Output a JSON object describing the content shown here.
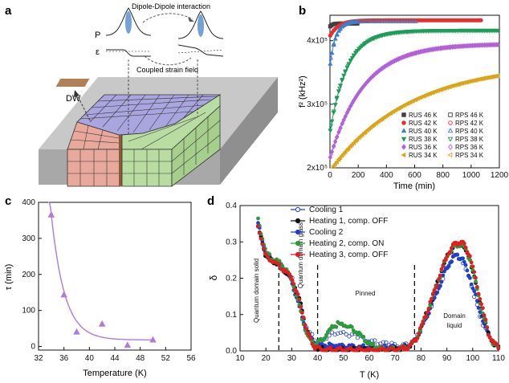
{
  "panels": {
    "a": {
      "label": "a",
      "dipole_label": "Dipole-Dipole interaction",
      "p_label": "P",
      "eps_label": "ε",
      "strain_label": "Coupled strain field",
      "dw_label": "DW",
      "colors": {
        "slab_top": "#c8c8c8",
        "slab_front": "#a8a8a8",
        "slab_side": "#8f8f8f",
        "purple": "#a9a6df",
        "pink": "#e8a89c",
        "green": "#b9dca3",
        "dw": "#b0805a"
      }
    },
    "b": {
      "label": "b"
    },
    "c": {
      "label": "c"
    },
    "d": {
      "label": "d"
    }
  },
  "chart_data": [
    {
      "id": "b",
      "type": "scatter",
      "xlabel": "Time (min)",
      "ylabel": "f² (kHz²)",
      "xlim": [
        0,
        1200
      ],
      "ylim": [
        200000,
        440000
      ],
      "xticks": [
        0,
        200,
        400,
        600,
        800,
        1000,
        1200
      ],
      "yticks": [
        {
          "value": 200000,
          "label": "2x10⁵"
        },
        {
          "value": 300000,
          "label": "3x10⁵"
        },
        {
          "value": 400000,
          "label": "4x10⁵"
        }
      ],
      "legend_position": "bottom-right",
      "series": [
        {
          "name": "RUS 46 K",
          "method": "RUS",
          "color": "#404040",
          "marker": "square",
          "filled": true,
          "a": 427000,
          "b": 5000,
          "tau": 16,
          "tmax": 200
        },
        {
          "name": "RPS 46 K",
          "method": "RPS",
          "color": "#404040",
          "marker": "square",
          "filled": false,
          "a": 427000,
          "b": 5000,
          "tau": 16,
          "tmax": 200
        },
        {
          "name": "RUS 42 K",
          "method": "RUS",
          "color": "#e53030",
          "marker": "circle",
          "filled": true,
          "a": 432000,
          "b": 25000,
          "tau": 60,
          "tmax": 1080
        },
        {
          "name": "RPS 42 K",
          "method": "RPS",
          "color": "#e53030",
          "marker": "circle",
          "filled": false,
          "a": 432000,
          "b": 25000,
          "tau": 60,
          "tmax": 200
        },
        {
          "name": "RUS 40 K",
          "method": "RUS",
          "color": "#3a7fd0",
          "marker": "triangle-up",
          "filled": true,
          "a": 430000,
          "b": 70000,
          "tau": 40,
          "tmax": 200
        },
        {
          "name": "RPS 40 K",
          "method": "RPS",
          "color": "#3a7fd0",
          "marker": "triangle-up",
          "filled": false,
          "a": 430000,
          "b": 70000,
          "tau": 40,
          "tmax": 610
        },
        {
          "name": "RUS 38 K",
          "method": "RUS",
          "color": "#1e9c5a",
          "marker": "triangle-down",
          "filled": true,
          "a": 416000,
          "b": 160000,
          "tau": 120,
          "tmax": 1200
        },
        {
          "name": "RPS 38 K",
          "method": "RPS",
          "color": "#1e9c5a",
          "marker": "triangle-down",
          "filled": false,
          "a": 416000,
          "b": 160000,
          "tau": 120,
          "tmax": 600
        },
        {
          "name": "RUS 36 K",
          "method": "RUS",
          "color": "#b262d8",
          "marker": "diamond",
          "filled": true,
          "a": 395000,
          "b": 180000,
          "tau": 240,
          "tmax": 1200
        },
        {
          "name": "RPS 36 K",
          "method": "RPS",
          "color": "#b262d8",
          "marker": "diamond",
          "filled": false,
          "a": 395000,
          "b": 180000,
          "tau": 240,
          "tmax": 900
        },
        {
          "name": "RUS 34 K",
          "method": "RUS",
          "color": "#d9a51a",
          "marker": "triangle-left",
          "filled": true,
          "a": 365000,
          "b": 170000,
          "tau": 560,
          "tmax": 1200
        },
        {
          "name": "RPS 34 K",
          "method": "RPS",
          "color": "#d9a51a",
          "marker": "triangle-left",
          "filled": false,
          "a": 365000,
          "b": 170000,
          "tau": 560,
          "tmax": 1200
        }
      ]
    },
    {
      "id": "c",
      "type": "scatter",
      "xlabel": "Temperature (K)",
      "ylabel": "τ (min)",
      "xlim": [
        32,
        56
      ],
      "ylim": [
        -10,
        400
      ],
      "xticks": [
        32,
        36,
        40,
        44,
        48,
        52,
        56
      ],
      "yticks": [
        0,
        100,
        200,
        300,
        400
      ],
      "color": "#b07ad8",
      "points": [
        {
          "x": 34,
          "y": 365
        },
        {
          "x": 36,
          "y": 143
        },
        {
          "x": 38,
          "y": 40
        },
        {
          "x": 42,
          "y": 62
        },
        {
          "x": 46,
          "y": 3
        },
        {
          "x": 50,
          "y": 18
        }
      ],
      "fit": {
        "base": 18,
        "amp": 350,
        "x0": 34,
        "scale": 2.1
      }
    },
    {
      "id": "d",
      "type": "line",
      "xlabel": "T (K)",
      "ylabel": "δ",
      "xlim": [
        10,
        110
      ],
      "ylim": [
        0,
        0.4
      ],
      "xticks": [
        10,
        20,
        30,
        40,
        50,
        60,
        70,
        80,
        90,
        100,
        110
      ],
      "yticks": [
        0.0,
        0.1,
        0.2,
        0.3,
        0.4
      ],
      "vlines": [
        25,
        40,
        77.5
      ],
      "annotations": [
        "Quantum domain solid",
        "Quantum domain glass",
        "Pinned",
        "Domain liquid"
      ],
      "legend_position": "top-left",
      "series": [
        {
          "name": "Cooling 1",
          "color": "#1f3fd0",
          "marker": "circle",
          "filled": false,
          "points": [
            [
              17,
              0.34
            ],
            [
              20,
              0.265
            ],
            [
              23,
              0.25
            ],
            [
              26,
              0.238
            ],
            [
              30,
              0.2
            ],
            [
              33,
              0.13
            ],
            [
              36,
              0.06
            ],
            [
              39,
              0.03
            ],
            [
              42,
              0.03
            ],
            [
              46,
              0.05
            ],
            [
              50,
              0.05
            ],
            [
              55,
              0.04
            ],
            [
              60,
              0.03
            ],
            [
              65,
              0.02
            ],
            [
              70,
              0.015
            ],
            [
              75,
              0.015
            ],
            [
              78,
              0.03
            ],
            [
              82,
              0.09
            ],
            [
              86,
              0.16
            ],
            [
              90,
              0.23
            ],
            [
              93,
              0.265
            ],
            [
              96,
              0.25
            ],
            [
              99,
              0.19
            ],
            [
              102,
              0.12
            ],
            [
              104,
              0.07
            ],
            [
              106,
              0.045
            ],
            [
              108,
              0.02
            ],
            [
              110,
              0.01
            ]
          ]
        },
        {
          "name": "Heating 1, comp. OFF",
          "color": "#111111",
          "marker": "circle",
          "filled": true,
          "points": [
            [
              17,
              0.34
            ],
            [
              20,
              0.26
            ],
            [
              23,
              0.245
            ],
            [
              26,
              0.23
            ],
            [
              30,
              0.2
            ],
            [
              33,
              0.14
            ],
            [
              36,
              0.05
            ],
            [
              39,
              0.01
            ],
            [
              42,
              0.005
            ],
            [
              46,
              0.003
            ],
            [
              50,
              0.003
            ],
            [
              55,
              0.003
            ],
            [
              60,
              0.003
            ],
            [
              65,
              0.003
            ],
            [
              70,
              0.005
            ],
            [
              75,
              0.01
            ],
            [
              78,
              0.03
            ],
            [
              82,
              0.1
            ],
            [
              86,
              0.18
            ],
            [
              90,
              0.26
            ],
            [
              93,
              0.29
            ],
            [
              96,
              0.295
            ],
            [
              99,
              0.25
            ],
            [
              102,
              0.16
            ],
            [
              104,
              0.1
            ],
            [
              106,
              0.05
            ],
            [
              108,
              0.02
            ],
            [
              110,
              0.01
            ]
          ]
        },
        {
          "name": "Cooling 2",
          "color": "#1f3fd0",
          "marker": "circle",
          "filled": true,
          "points": [
            [
              17,
              0.35
            ],
            [
              20,
              0.27
            ],
            [
              23,
              0.25
            ],
            [
              26,
              0.235
            ],
            [
              30,
              0.19
            ],
            [
              33,
              0.12
            ],
            [
              36,
              0.05
            ],
            [
              39,
              0.02
            ],
            [
              42,
              0.015
            ],
            [
              46,
              0.015
            ],
            [
              50,
              0.015
            ],
            [
              55,
              0.01
            ],
            [
              60,
              0.01
            ],
            [
              65,
              0.01
            ],
            [
              70,
              0.01
            ],
            [
              75,
              0.012
            ],
            [
              78,
              0.03
            ],
            [
              82,
              0.09
            ],
            [
              86,
              0.16
            ],
            [
              90,
              0.23
            ],
            [
              93,
              0.262
            ],
            [
              96,
              0.255
            ],
            [
              99,
              0.2
            ],
            [
              102,
              0.13
            ],
            [
              104,
              0.08
            ],
            [
              106,
              0.045
            ],
            [
              108,
              0.02
            ],
            [
              110,
              0.01
            ]
          ]
        },
        {
          "name": "Heating 2, comp. ON",
          "color": "#2e9a3a",
          "marker": "circle",
          "filled": true,
          "points": [
            [
              17,
              0.36
            ],
            [
              20,
              0.27
            ],
            [
              23,
              0.25
            ],
            [
              26,
              0.24
            ],
            [
              30,
              0.2
            ],
            [
              33,
              0.12
            ],
            [
              36,
              0.04
            ],
            [
              39,
              0.02
            ],
            [
              42,
              0.03
            ],
            [
              45,
              0.06
            ],
            [
              48,
              0.075
            ],
            [
              51,
              0.07
            ],
            [
              54,
              0.06
            ],
            [
              57,
              0.04
            ],
            [
              60,
              0.02
            ],
            [
              63,
              0.01
            ],
            [
              66,
              0.005
            ],
            [
              70,
              0.005
            ],
            [
              75,
              0.01
            ],
            [
              78,
              0.03
            ],
            [
              82,
              0.1
            ],
            [
              86,
              0.18
            ],
            [
              90,
              0.26
            ],
            [
              93,
              0.29
            ],
            [
              96,
              0.295
            ],
            [
              99,
              0.25
            ],
            [
              102,
              0.16
            ],
            [
              104,
              0.1
            ],
            [
              106,
              0.05
            ],
            [
              108,
              0.02
            ],
            [
              110,
              0.01
            ]
          ]
        },
        {
          "name": "Heating 3, comp. OFF",
          "color": "#e02020",
          "marker": "circle",
          "filled": true,
          "points": [
            [
              17,
              0.34
            ],
            [
              20,
              0.26
            ],
            [
              23,
              0.245
            ],
            [
              26,
              0.23
            ],
            [
              30,
              0.2
            ],
            [
              33,
              0.14
            ],
            [
              36,
              0.05
            ],
            [
              39,
              0.01
            ],
            [
              42,
              0.003
            ],
            [
              46,
              0.003
            ],
            [
              50,
              0.003
            ],
            [
              55,
              0.003
            ],
            [
              60,
              0.003
            ],
            [
              65,
              0.003
            ],
            [
              70,
              0.005
            ],
            [
              75,
              0.01
            ],
            [
              78,
              0.03
            ],
            [
              82,
              0.1
            ],
            [
              86,
              0.18
            ],
            [
              90,
              0.265
            ],
            [
              93,
              0.295
            ],
            [
              96,
              0.3
            ],
            [
              99,
              0.26
            ],
            [
              102,
              0.17
            ],
            [
              104,
              0.11
            ],
            [
              106,
              0.05
            ],
            [
              108,
              0.02
            ],
            [
              110,
              0.01
            ]
          ]
        }
      ]
    }
  ]
}
